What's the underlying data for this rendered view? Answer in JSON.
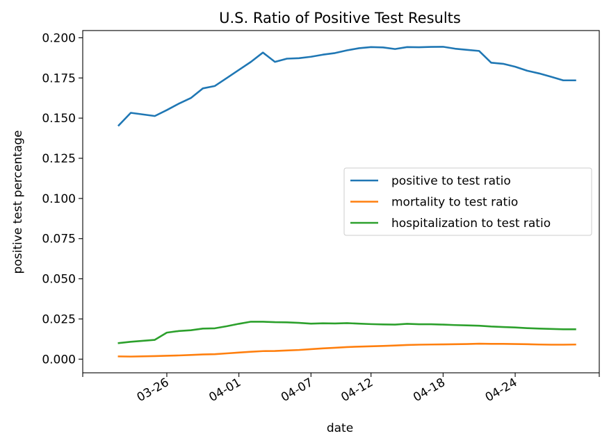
{
  "chart_data": {
    "type": "line",
    "title": "U.S. Ratio of Positive Test Results",
    "xlabel": "date",
    "ylabel": "positive test percentage",
    "x": [
      "03-22",
      "03-23",
      "03-25",
      "03-26",
      "03-27",
      "03-28",
      "03-29",
      "03-30",
      "03-31",
      "04-01",
      "04-02",
      "04-03",
      "04-04",
      "04-05",
      "04-06",
      "04-07",
      "04-08",
      "04-09",
      "04-10",
      "04-11",
      "04-12",
      "04-13",
      "04-14",
      "04-15",
      "04-16",
      "04-17",
      "04-18",
      "04-19",
      "04-20",
      "04-21",
      "04-22",
      "04-23",
      "04-24",
      "04-25",
      "04-26",
      "04-27",
      "04-28",
      "04-29"
    ],
    "x_tick_labels": [
      "03-26",
      "04-01",
      "04-07",
      "04-12",
      "04-18",
      "04-24"
    ],
    "xlim": [
      "03-19",
      "05-01"
    ],
    "ylim": [
      -0.0085,
      0.2045
    ],
    "y_ticks": [
      "0.000",
      "0.025",
      "0.050",
      "0.075",
      "0.100",
      "0.125",
      "0.150",
      "0.175",
      "0.200"
    ],
    "legend_position": "center-right",
    "grid": false,
    "series": [
      {
        "name": "positive to test ratio",
        "color": "#1f77b4",
        "values": [
          0.1455,
          0.1533,
          0.1513,
          0.155,
          0.159,
          0.1625,
          0.1685,
          0.17,
          0.175,
          0.18,
          0.185,
          0.1908,
          0.185,
          0.187,
          0.1873,
          0.1882,
          0.1895,
          0.1905,
          0.1922,
          0.1935,
          0.1942,
          0.194,
          0.193,
          0.1942,
          0.1941,
          0.1943,
          0.1944,
          0.1932,
          0.1925,
          0.1918,
          0.1845,
          0.1838,
          0.182,
          0.1795,
          0.1778,
          0.1757,
          0.1735,
          0.1735
        ]
      },
      {
        "name": "mortality to test ratio",
        "color": "#ff7f0e",
        "values": [
          0.0017,
          0.0016,
          0.0019,
          0.0021,
          0.0023,
          0.0026,
          0.0029,
          0.0031,
          0.0036,
          0.0041,
          0.0046,
          0.005,
          0.0051,
          0.0054,
          0.0057,
          0.0062,
          0.0067,
          0.0071,
          0.0075,
          0.0078,
          0.008,
          0.0082,
          0.0085,
          0.0088,
          0.009,
          0.0091,
          0.0092,
          0.0093,
          0.0094,
          0.0096,
          0.0095,
          0.0095,
          0.0094,
          0.0093,
          0.0091,
          0.009,
          0.009,
          0.0091
        ]
      },
      {
        "name": "hospitalization to test ratio",
        "color": "#2ca02c",
        "values": [
          0.01,
          0.0108,
          0.012,
          0.0165,
          0.0175,
          0.018,
          0.019,
          0.0192,
          0.0205,
          0.022,
          0.0233,
          0.0233,
          0.023,
          0.0229,
          0.0226,
          0.0221,
          0.0223,
          0.0222,
          0.0224,
          0.0221,
          0.0218,
          0.0216,
          0.0215,
          0.022,
          0.0217,
          0.0217,
          0.0215,
          0.0212,
          0.021,
          0.0208,
          0.0203,
          0.02,
          0.0197,
          0.0193,
          0.019,
          0.0188,
          0.0186,
          0.0186
        ]
      }
    ]
  }
}
